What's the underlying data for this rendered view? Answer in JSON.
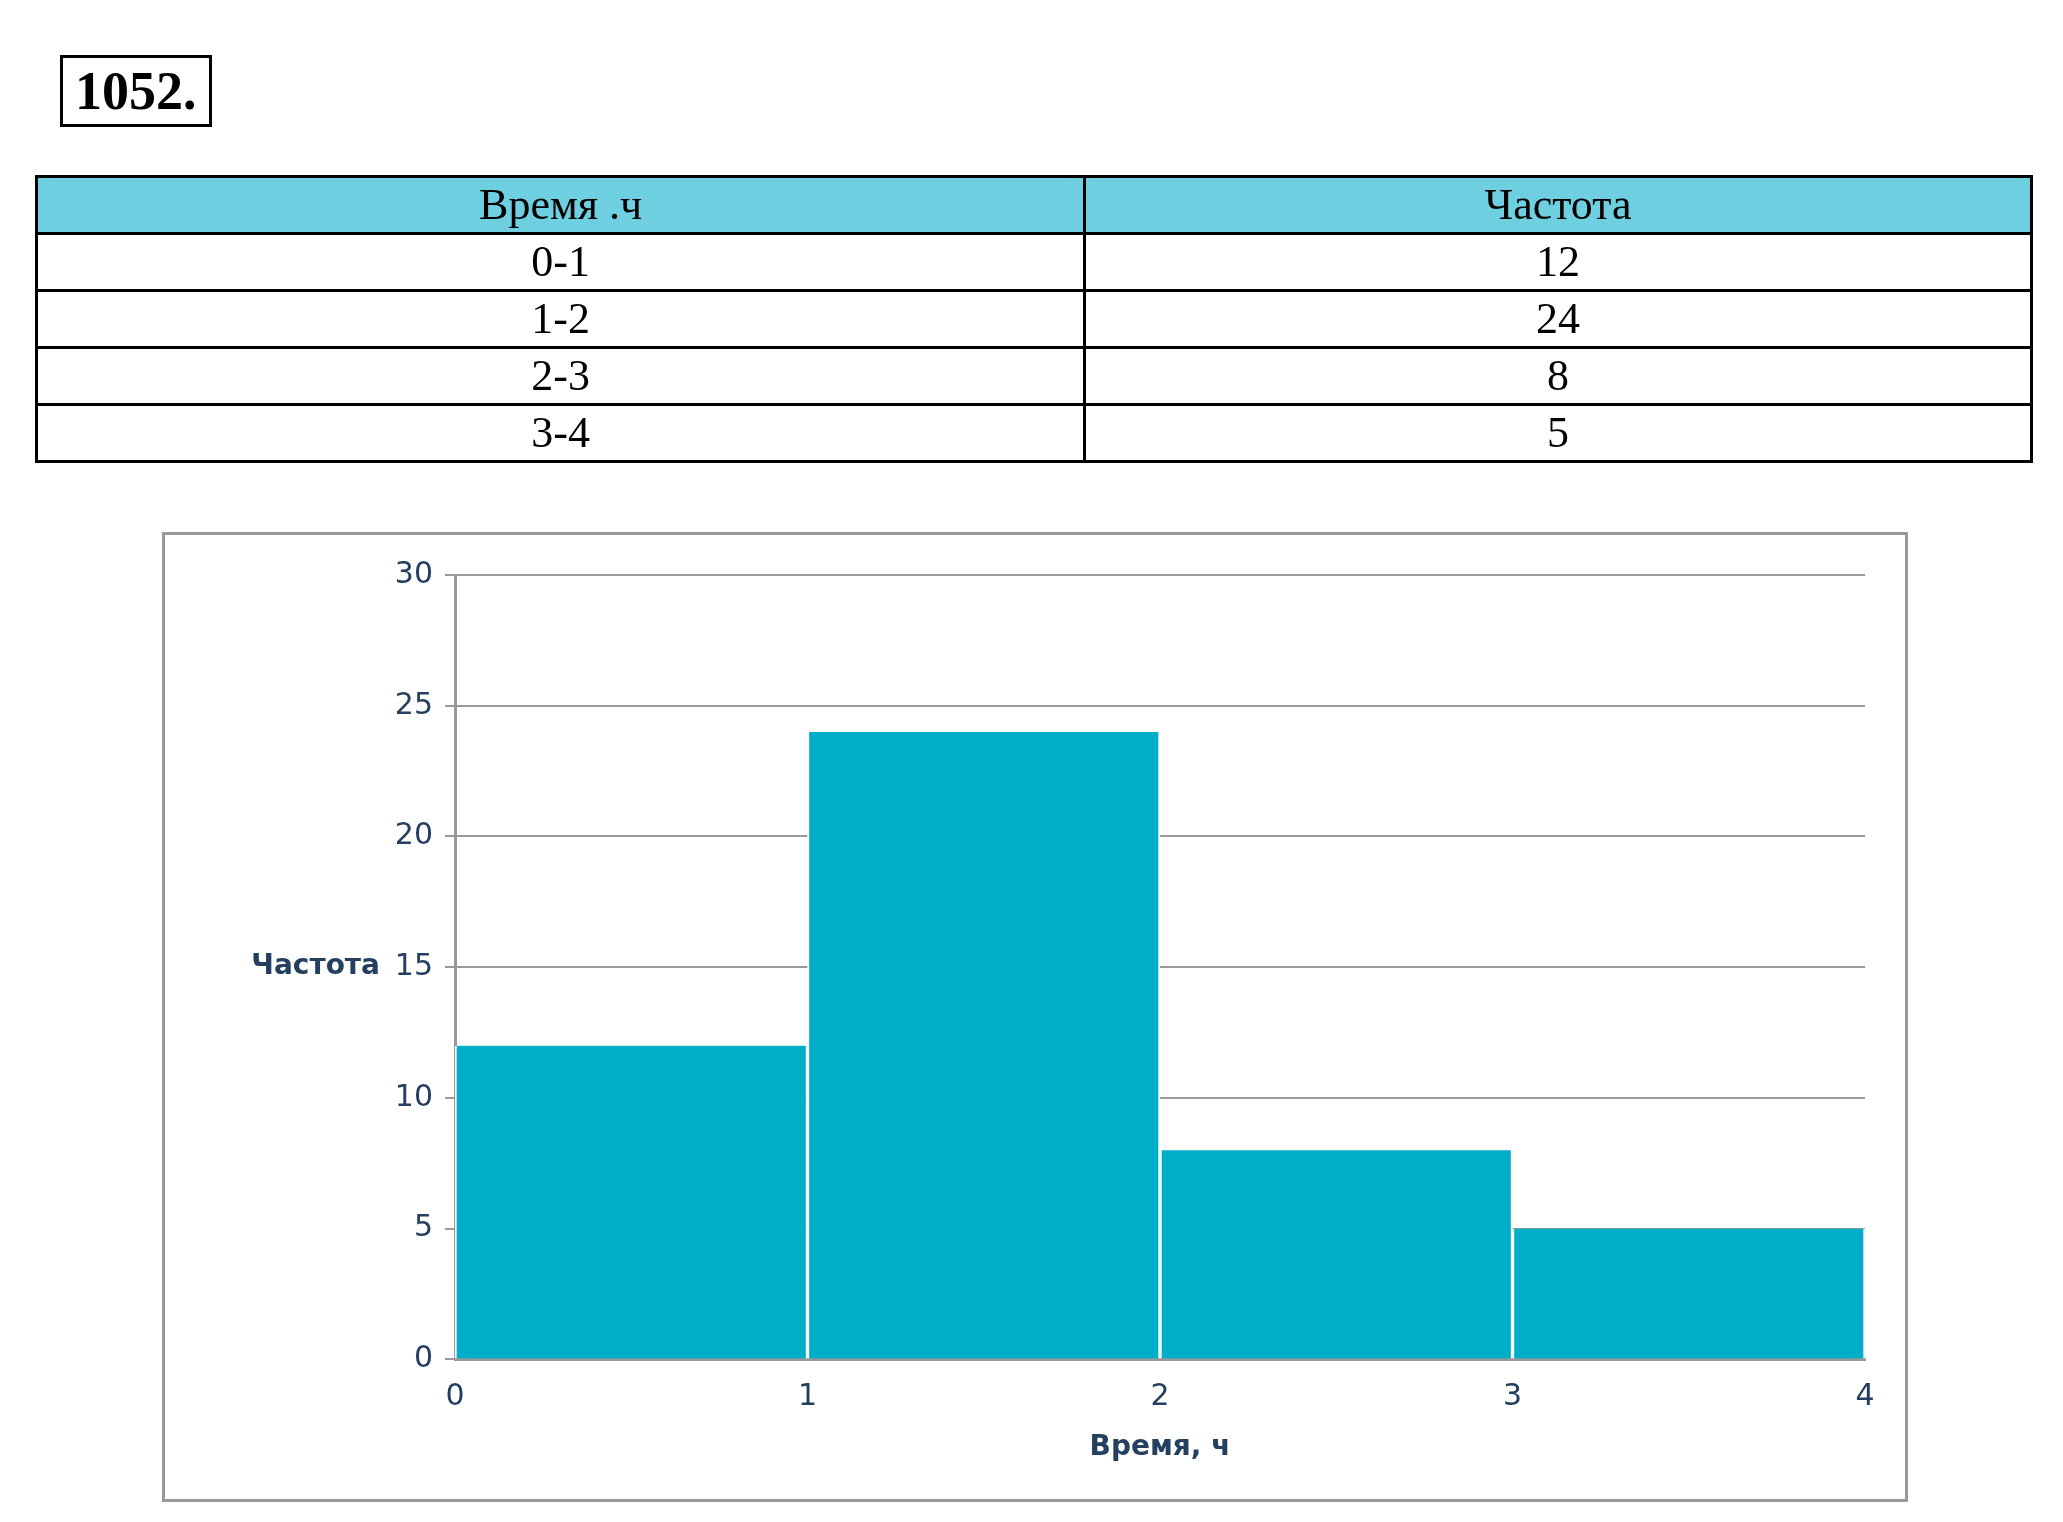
{
  "chart_data": {
    "type": "histogram",
    "title": "1052.",
    "xlabel": "Время, ч",
    "ylabel": "Частота",
    "annotations": [
      "Время .ч",
      "Частота",
      "0-1",
      "12",
      "1-2",
      "24",
      "2-3",
      "8",
      "3-4",
      "5"
    ],
    "bins": [
      0,
      1,
      2,
      3,
      4
    ],
    "values": [
      12,
      24,
      8,
      5
    ],
    "color": "#00aec9",
    "xlim": [
      0,
      4
    ],
    "xticks": [
      0,
      1,
      2,
      3,
      4
    ],
    "ylim": [
      0,
      30
    ],
    "yticks": [
      0,
      5,
      10,
      15,
      20,
      25,
      30
    ],
    "grid": "y",
    "legend": false
  }
}
